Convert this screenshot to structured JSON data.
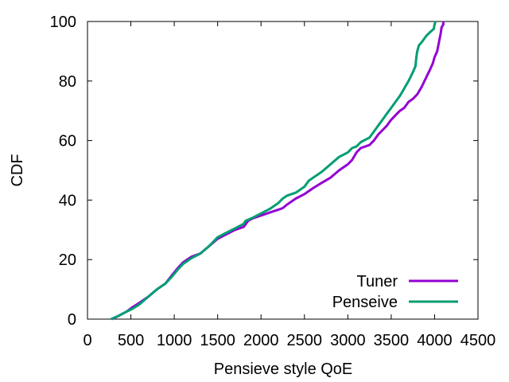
{
  "chart_data": {
    "type": "line",
    "xlabel": "Pensieve style QoE",
    "ylabel": "CDF",
    "xlim": [
      0,
      4500
    ],
    "ylim": [
      0,
      100
    ],
    "xticks": [
      0,
      500,
      1000,
      1500,
      2000,
      2500,
      3000,
      3500,
      4000,
      4500
    ],
    "yticks": [
      0,
      20,
      40,
      60,
      80,
      100
    ],
    "grid": false,
    "legend_position": "bottom-right",
    "series": [
      {
        "name": "Tuner",
        "color": "#9400d3",
        "points": [
          [
            280,
            0
          ],
          [
            350,
            1
          ],
          [
            450,
            2.5
          ],
          [
            520,
            4
          ],
          [
            600,
            5.5
          ],
          [
            700,
            7.5
          ],
          [
            800,
            10
          ],
          [
            900,
            12
          ],
          [
            980,
            15
          ],
          [
            1050,
            17.5
          ],
          [
            1100,
            19
          ],
          [
            1200,
            21
          ],
          [
            1300,
            22
          ],
          [
            1400,
            24.5
          ],
          [
            1500,
            27
          ],
          [
            1600,
            28.5
          ],
          [
            1700,
            30
          ],
          [
            1800,
            31
          ],
          [
            1850,
            33
          ],
          [
            1900,
            33.8
          ],
          [
            2000,
            34.8
          ],
          [
            2100,
            35.8
          ],
          [
            2200,
            36.8
          ],
          [
            2250,
            37.3
          ],
          [
            2300,
            38.5
          ],
          [
            2400,
            40.5
          ],
          [
            2500,
            42
          ],
          [
            2600,
            44
          ],
          [
            2700,
            45.8
          ],
          [
            2800,
            47.5
          ],
          [
            2900,
            50
          ],
          [
            3000,
            52
          ],
          [
            3050,
            53.5
          ],
          [
            3100,
            56
          ],
          [
            3150,
            57.5
          ],
          [
            3250,
            58.5
          ],
          [
            3300,
            60
          ],
          [
            3350,
            62
          ],
          [
            3400,
            63.5
          ],
          [
            3450,
            65
          ],
          [
            3500,
            67
          ],
          [
            3550,
            68.5
          ],
          [
            3600,
            70
          ],
          [
            3650,
            71
          ],
          [
            3700,
            73
          ],
          [
            3750,
            74
          ],
          [
            3800,
            75.5
          ],
          [
            3850,
            78
          ],
          [
            3900,
            81
          ],
          [
            3950,
            84
          ],
          [
            3980,
            86
          ],
          [
            4000,
            88
          ],
          [
            4030,
            90
          ],
          [
            4050,
            93
          ],
          [
            4070,
            96
          ],
          [
            4080,
            98
          ],
          [
            4100,
            99
          ],
          [
            4100,
            100
          ]
        ]
      },
      {
        "name": "Penseive",
        "color": "#009e73",
        "points": [
          [
            270,
            0
          ],
          [
            350,
            1
          ],
          [
            450,
            2.5
          ],
          [
            520,
            3.5
          ],
          [
            600,
            5
          ],
          [
            700,
            7.5
          ],
          [
            800,
            10
          ],
          [
            900,
            12
          ],
          [
            980,
            14.5
          ],
          [
            1050,
            17
          ],
          [
            1100,
            18.5
          ],
          [
            1200,
            20.5
          ],
          [
            1300,
            22
          ],
          [
            1400,
            24.5
          ],
          [
            1500,
            27.5
          ],
          [
            1600,
            29
          ],
          [
            1700,
            30.5
          ],
          [
            1800,
            32
          ],
          [
            1820,
            33
          ],
          [
            1900,
            34
          ],
          [
            2000,
            35.5
          ],
          [
            2100,
            37
          ],
          [
            2200,
            39
          ],
          [
            2250,
            40.5
          ],
          [
            2300,
            41.5
          ],
          [
            2400,
            42.5
          ],
          [
            2500,
            44.5
          ],
          [
            2550,
            46.5
          ],
          [
            2600,
            47.5
          ],
          [
            2700,
            49.5
          ],
          [
            2800,
            52
          ],
          [
            2900,
            54.5
          ],
          [
            3000,
            56
          ],
          [
            3050,
            57.5
          ],
          [
            3100,
            58
          ],
          [
            3150,
            59.5
          ],
          [
            3250,
            61
          ],
          [
            3300,
            63
          ],
          [
            3350,
            65
          ],
          [
            3400,
            67
          ],
          [
            3450,
            69
          ],
          [
            3500,
            71
          ],
          [
            3550,
            73
          ],
          [
            3600,
            75
          ],
          [
            3650,
            77.5
          ],
          [
            3700,
            80
          ],
          [
            3750,
            83
          ],
          [
            3780,
            85
          ],
          [
            3790,
            88
          ],
          [
            3800,
            90
          ],
          [
            3820,
            92
          ],
          [
            3850,
            93
          ],
          [
            3900,
            95
          ],
          [
            3950,
            96.5
          ],
          [
            3990,
            97.5
          ],
          [
            4000,
            99
          ],
          [
            4010,
            100
          ]
        ]
      }
    ]
  }
}
